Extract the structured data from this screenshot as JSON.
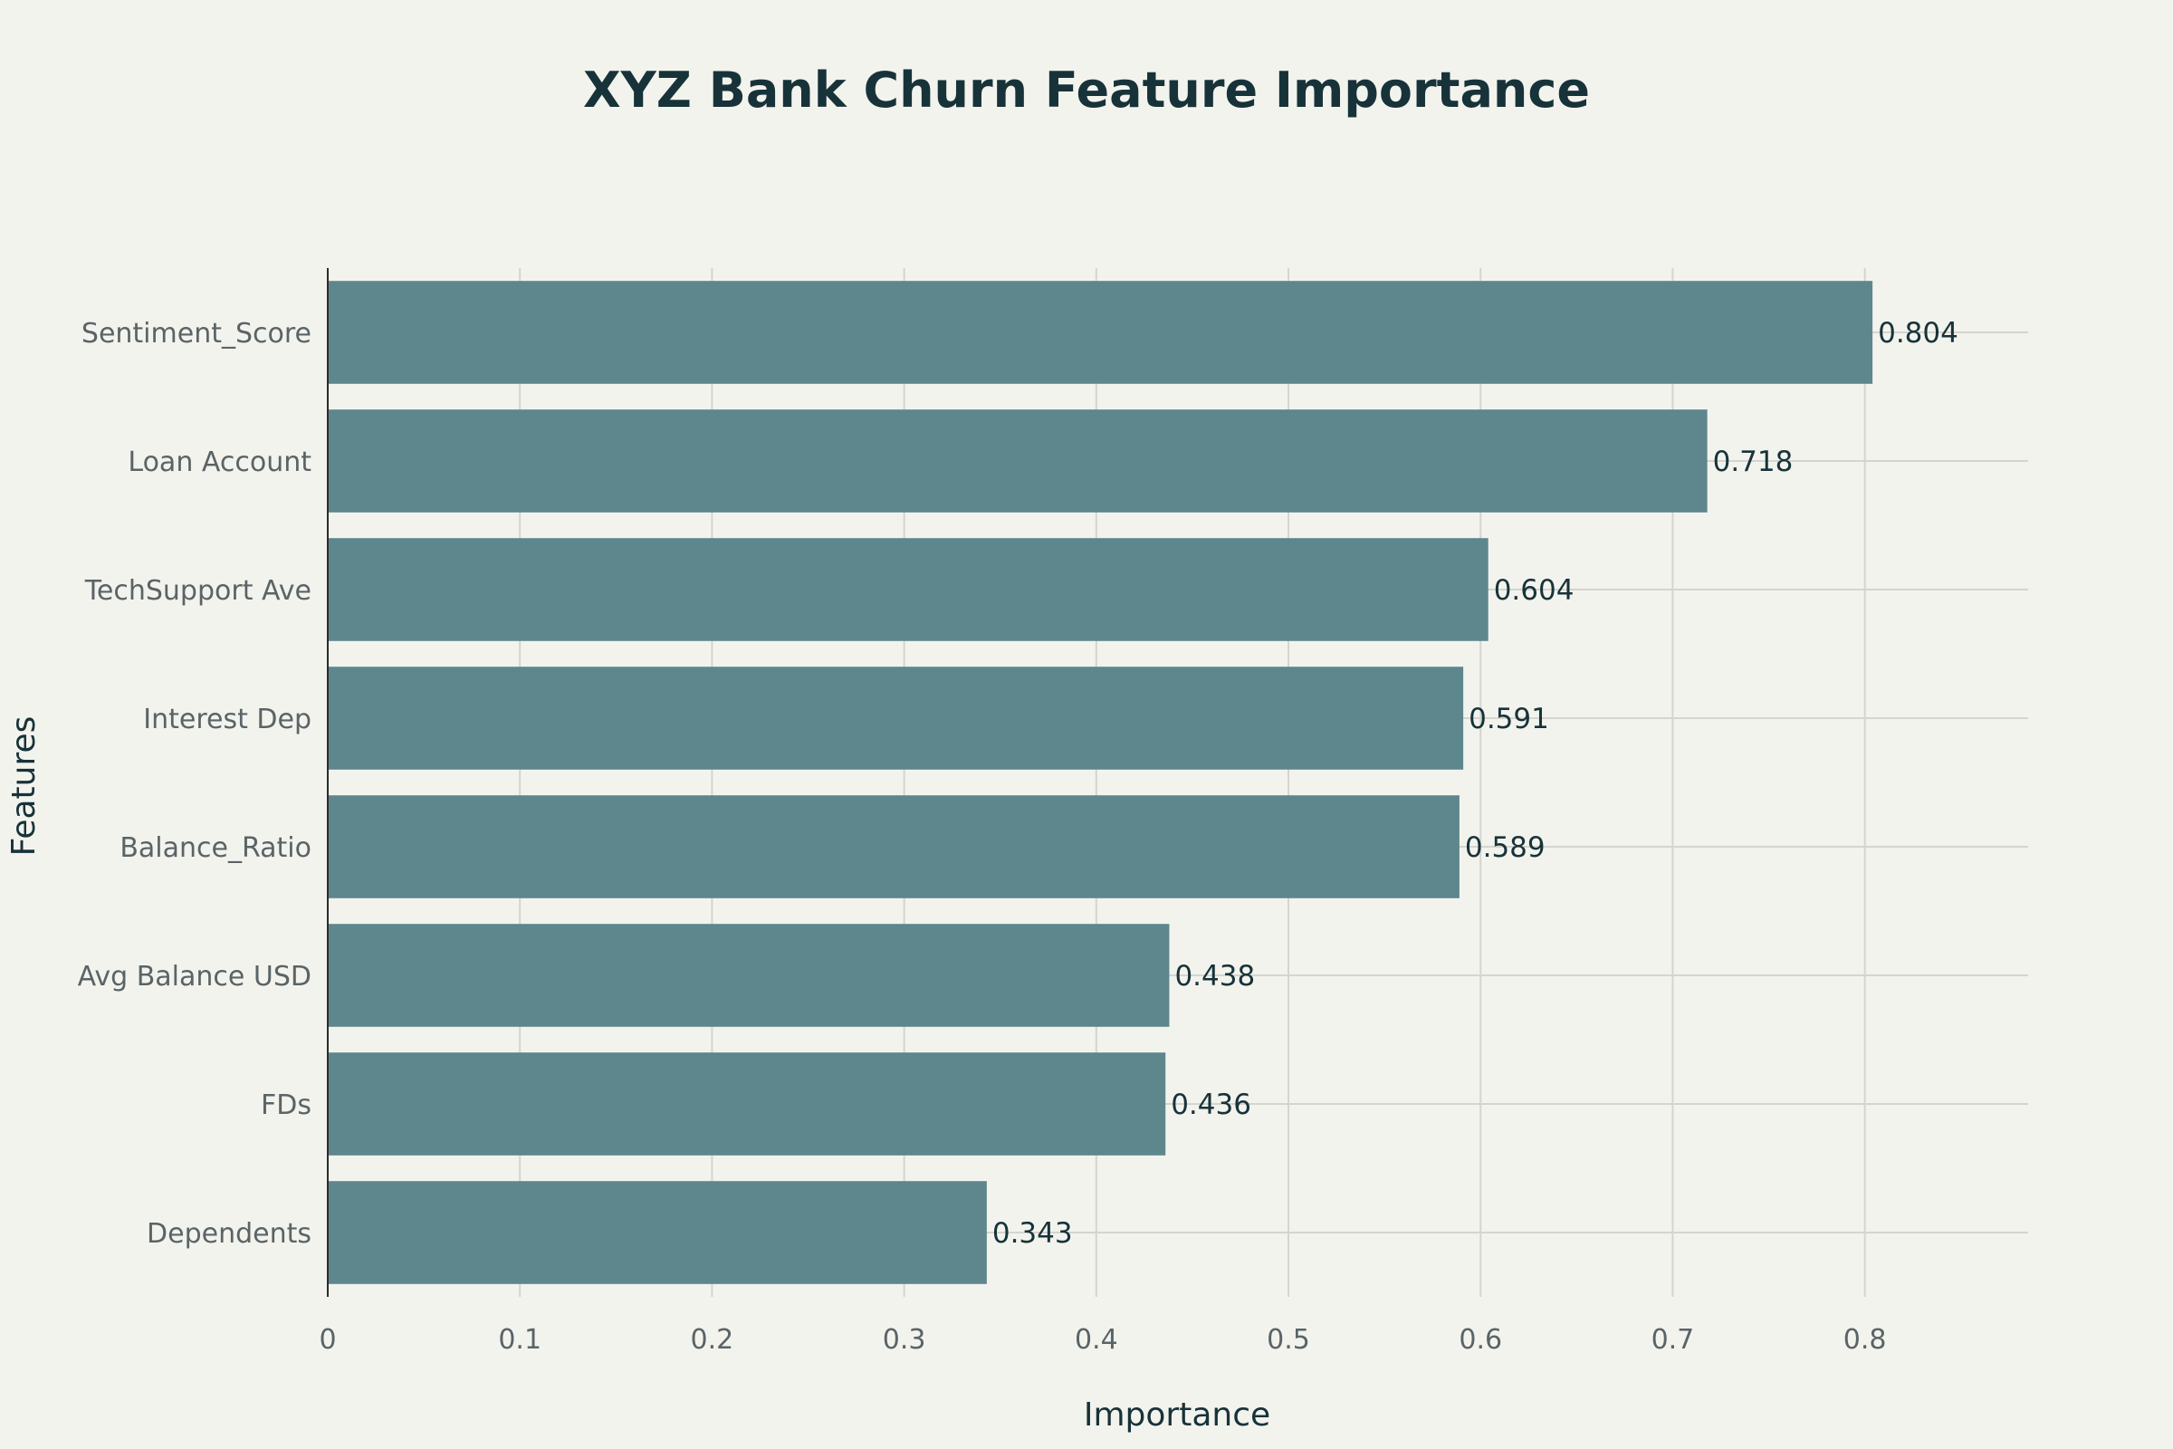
{
  "chart_data": {
    "type": "bar",
    "orientation": "horizontal",
    "title": "XYZ Bank Churn Feature Importance",
    "xlabel": "Importance",
    "ylabel": "Features",
    "categories": [
      "Sentiment_Score",
      "Loan Account",
      "TechSupport Ave",
      "Interest Dep",
      "Balance_Ratio",
      "Avg Balance USD",
      "FDs",
      "Dependents"
    ],
    "values": [
      0.804,
      0.718,
      0.604,
      0.591,
      0.589,
      0.438,
      0.436,
      0.343
    ],
    "data_labels": [
      "0.804",
      "0.718",
      "0.604",
      "0.591",
      "0.589",
      "0.438",
      "0.436",
      "0.343"
    ],
    "xlim": [
      0,
      0.885
    ],
    "xticks": [
      0,
      0.1,
      0.2,
      0.3,
      0.4,
      0.5,
      0.6,
      0.7,
      0.8
    ],
    "xtick_labels": [
      "0",
      "0.1",
      "0.2",
      "0.3",
      "0.4",
      "0.5",
      "0.6",
      "0.7",
      "0.8"
    ],
    "grid": true,
    "legend": "none",
    "colors": {
      "bar": "#5e878d",
      "background": "#f3f3ee",
      "title": "#173339"
    }
  }
}
